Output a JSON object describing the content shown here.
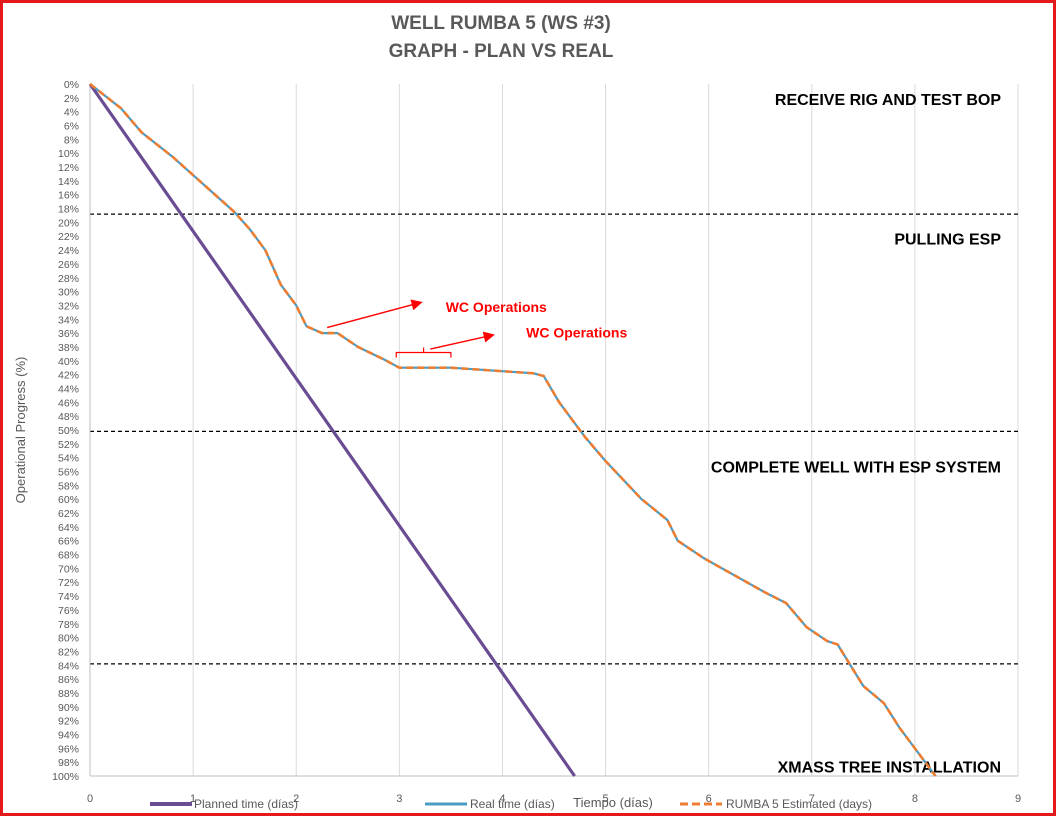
{
  "chart_data": {
    "type": "line",
    "title": "WELL RUMBA 5 (WS #3)",
    "subtitle": "GRAPH  - PLAN VS REAL",
    "xlabel": "Tiempo (días)",
    "ylabel": "Operational Progress (%)",
    "xlim": [
      0,
      9
    ],
    "ylim": [
      0,
      100
    ],
    "y_inverted": true,
    "x_ticks": [
      0,
      1,
      2,
      3,
      4,
      5,
      6,
      7,
      8,
      9
    ],
    "y_ticks": [
      0,
      2,
      4,
      6,
      8,
      10,
      12,
      14,
      16,
      18,
      20,
      22,
      24,
      26,
      28,
      30,
      32,
      34,
      36,
      38,
      40,
      42,
      44,
      46,
      48,
      50,
      52,
      54,
      56,
      58,
      60,
      62,
      64,
      66,
      68,
      70,
      72,
      74,
      76,
      78,
      80,
      82,
      84,
      86,
      88,
      90,
      92,
      94,
      96,
      98,
      100
    ],
    "y_tick_suffix": "%",
    "grid": "vertical",
    "legend_position": "bottom",
    "series": [
      {
        "name": "Planned time (días)",
        "color": "#6a4c93",
        "style": "solid",
        "x": [
          0,
          4.7
        ],
        "y": [
          0,
          100
        ]
      },
      {
        "name": "Real time (días)",
        "color": "#4a9cc4",
        "style": "solid",
        "x": [
          0,
          0.3,
          0.5,
          0.8,
          1.1,
          1.4,
          1.55,
          1.7,
          1.85,
          2.0,
          2.1,
          2.25,
          2.4,
          2.6,
          2.85,
          3.0,
          3.5,
          4.0,
          4.3,
          4.4,
          4.55,
          4.8,
          5.0,
          5.35,
          5.6,
          5.7,
          5.95,
          6.25,
          6.55,
          6.75,
          6.95,
          7.15,
          7.25,
          7.5,
          7.7,
          7.85,
          8.05,
          8.2
        ],
        "y": [
          0,
          3.5,
          7,
          10.5,
          14.5,
          18.5,
          21,
          24,
          29,
          32,
          35,
          36,
          36,
          38,
          39.8,
          41,
          41,
          41.5,
          41.8,
          42.2,
          46,
          51,
          54.5,
          60,
          63,
          66,
          68.5,
          71,
          73.5,
          75,
          78.5,
          80.5,
          81,
          87,
          89.5,
          93,
          97,
          100
        ]
      },
      {
        "name": "RUMBA 5  Estimated (days)",
        "color": "#ed7d31",
        "style": "dashed",
        "x": [
          0,
          0.3,
          0.5,
          0.8,
          1.1,
          1.4,
          1.55,
          1.7,
          1.85,
          2.0,
          2.1,
          2.25,
          2.4,
          2.6,
          2.85,
          3.0,
          3.5,
          4.0,
          4.3,
          4.4,
          4.55,
          4.8,
          5.0,
          5.35,
          5.6,
          5.7,
          5.95,
          6.25,
          6.55,
          6.75,
          6.95,
          7.15,
          7.25,
          7.5,
          7.7,
          7.85,
          8.05,
          8.2
        ],
        "y": [
          0,
          3.5,
          7,
          10.5,
          14.5,
          18.5,
          21,
          24,
          29,
          32,
          35,
          36,
          36,
          38,
          39.8,
          41,
          41,
          41.5,
          41.8,
          42.2,
          46,
          51,
          54.5,
          60,
          63,
          66,
          68.5,
          71,
          73.5,
          75,
          78.5,
          80.5,
          81,
          87,
          89.5,
          93,
          97,
          100
        ]
      }
    ],
    "phase_lines": [
      18.8,
      50.2,
      83.8
    ],
    "phase_labels": [
      {
        "text": "RECEIVE RIG AND TEST BOP",
        "y": 2.2
      },
      {
        "text": "PULLING ESP",
        "y": 22.3
      },
      {
        "text": "COMPLETE WELL WITH ESP SYSTEM",
        "y": 55.3
      },
      {
        "text": "XMASS TREE INSTALLATION",
        "y": 98.6
      }
    ],
    "annotations": [
      {
        "text": "WC Operations",
        "color": "#ff0000",
        "text_x": 3.45,
        "text_y": 32.2,
        "arrow_from": [
          2.3,
          35.2
        ],
        "arrow_to": [
          3.2,
          31.6
        ]
      },
      {
        "text": "WC Operations",
        "color": "#ff0000",
        "text_x": 4.23,
        "text_y": 35.9,
        "arrow_from": [
          3.3,
          38.3
        ],
        "arrow_to": [
          3.9,
          36.3
        ]
      }
    ],
    "brace": {
      "x_from": 2.97,
      "x_to": 3.5,
      "y": 38.8,
      "color": "#ff0000"
    }
  }
}
